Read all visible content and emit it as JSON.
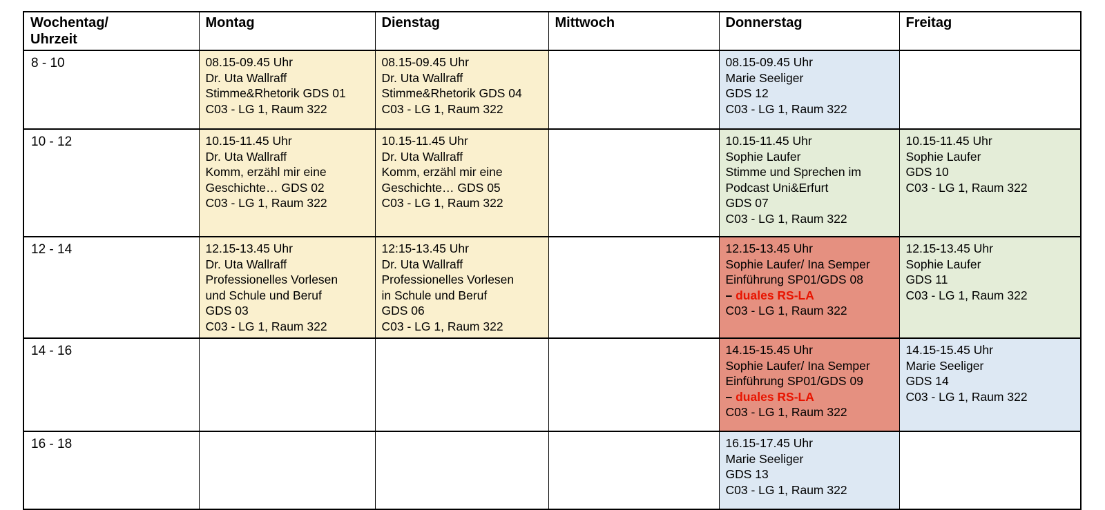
{
  "colors": {
    "yellow": "#FAF0CE",
    "blue": "#DDE8F3",
    "green": "#E4EDD8",
    "salmon": "#E59080",
    "red_text": "#E81400",
    "border": "#000000",
    "text": "#000000",
    "page_background": "#FFFFFF"
  },
  "table": {
    "columns": [
      {
        "key": "time",
        "label": "Wochentag/\nUhrzeit"
      },
      {
        "key": "montag",
        "label": "Montag"
      },
      {
        "key": "dienstag",
        "label": "Dienstag"
      },
      {
        "key": "mittwoch",
        "label": "Mittwoch"
      },
      {
        "key": "donnerstag",
        "label": "Donnerstag"
      },
      {
        "key": "freitag",
        "label": "Freitag"
      }
    ],
    "rows": [
      {
        "time": "8 - 10",
        "cells": {
          "montag": {
            "color": "yellow",
            "lines": [
              "08.15-09.45 Uhr",
              "Dr. Uta Wallraff",
              "Stimme&Rhetorik GDS 01",
              "C03 - LG 1, Raum 322"
            ]
          },
          "dienstag": {
            "color": "yellow",
            "lines": [
              "08.15-09.45 Uhr",
              "Dr. Uta Wallraff",
              "Stimme&Rhetorik GDS 04",
              "C03 - LG 1, Raum 322"
            ]
          },
          "mittwoch": null,
          "donnerstag": {
            "color": "blue",
            "lines": [
              "08.15-09.45 Uhr",
              "Marie Seeliger",
              "GDS 12",
              "C03 - LG 1, Raum 322"
            ]
          },
          "freitag": null
        }
      },
      {
        "time": "10 - 12",
        "cells": {
          "montag": {
            "color": "yellow",
            "lines": [
              "10.15-11.45 Uhr",
              "Dr. Uta Wallraff",
              "Komm, erzähl mir eine",
              "Geschichte… GDS 02",
              "C03 - LG 1, Raum 322"
            ]
          },
          "dienstag": {
            "color": "yellow",
            "lines": [
              "10.15-11.45 Uhr",
              "Dr. Uta Wallraff",
              "Komm, erzähl mir eine",
              "Geschichte… GDS 05",
              "C03 - LG 1, Raum 322"
            ]
          },
          "mittwoch": null,
          "donnerstag": {
            "color": "green",
            "lines": [
              "10.15-11.45 Uhr",
              "Sophie Laufer",
              "Stimme und Sprechen im",
              "Podcast Uni&Erfurt",
              "GDS 07",
              "C03 - LG 1, Raum 322"
            ]
          },
          "freitag": {
            "color": "green",
            "lines": [
              "10.15-11.45 Uhr",
              "Sophie Laufer",
              "GDS 10",
              "C03 - LG 1, Raum 322"
            ]
          }
        }
      },
      {
        "time": "12 - 14",
        "cells": {
          "montag": {
            "color": "yellow",
            "lines": [
              "12.15-13.45 Uhr",
              "Dr. Uta Wallraff",
              "Professionelles Vorlesen",
              "und Schule und Beruf",
              "GDS 03",
              "C03 - LG 1, Raum 322"
            ]
          },
          "dienstag": {
            "color": "yellow",
            "lines": [
              "12:15-13.45 Uhr",
              "Dr. Uta Wallraff",
              "Professionelles Vorlesen",
              "in Schule und Beruf",
              "GDS 06",
              "C03 - LG 1, Raum 322"
            ]
          },
          "mittwoch": null,
          "donnerstag": {
            "color": "salmon",
            "lines": [
              "12.15-13.45 Uhr",
              "Sophie Laufer/ Ina Semper",
              "Einführung SP01/GDS 08",
              {
                "parts": [
                  {
                    "text": "– ",
                    "style": "plain"
                  },
                  {
                    "text": "duales RS-LA",
                    "style": "red-bold"
                  }
                ]
              },
              "C03 - LG 1, Raum 322"
            ]
          },
          "freitag": {
            "color": "green",
            "lines": [
              "12.15-13.45 Uhr",
              "Sophie Laufer",
              "GDS 11",
              "C03 - LG 1, Raum 322"
            ]
          }
        }
      },
      {
        "time": "14 - 16",
        "cells": {
          "montag": null,
          "dienstag": null,
          "mittwoch": null,
          "donnerstag": {
            "color": "salmon",
            "lines": [
              "14.15-15.45 Uhr",
              "Sophie Laufer/ Ina Semper",
              "Einführung SP01/GDS 09",
              {
                "parts": [
                  {
                    "text": "– ",
                    "style": "plain"
                  },
                  {
                    "text": "duales RS-LA",
                    "style": "red-bold"
                  }
                ]
              },
              "C03 - LG 1, Raum 322"
            ]
          },
          "freitag": {
            "color": "blue",
            "lines": [
              "14.15-15.45 Uhr",
              "Marie Seeliger",
              "GDS 14",
              "C03 - LG 1, Raum 322"
            ]
          }
        }
      },
      {
        "time": "16 - 18",
        "cells": {
          "montag": null,
          "dienstag": null,
          "mittwoch": null,
          "donnerstag": {
            "color": "blue",
            "lines": [
              "16.15-17.45 Uhr",
              "Marie Seeliger",
              "GDS 13",
              "C03 - LG 1, Raum 322"
            ]
          },
          "freitag": null
        }
      }
    ]
  }
}
